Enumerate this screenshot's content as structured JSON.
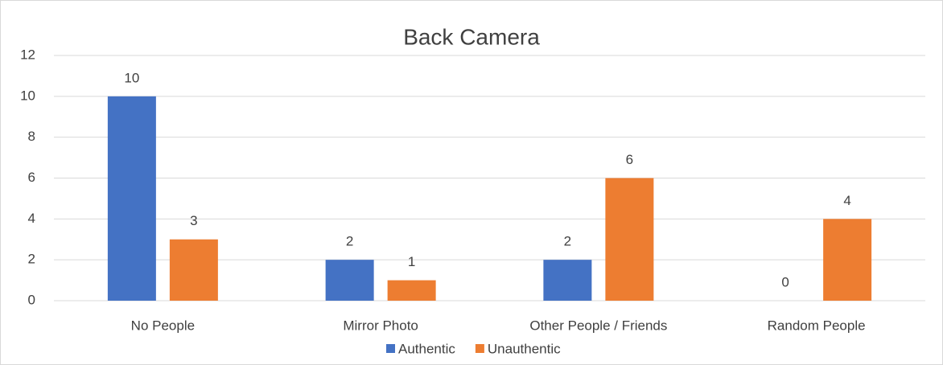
{
  "chart_data": {
    "type": "bar",
    "title": "Back Camera",
    "categories": [
      "No People",
      "Mirror Photo",
      "Other People / Friends",
      "Random People"
    ],
    "series": [
      {
        "name": "Authentic",
        "color": "#4472c4",
        "values": [
          10,
          2,
          2,
          0
        ]
      },
      {
        "name": "Unauthentic",
        "color": "#ed7d31",
        "values": [
          3,
          1,
          6,
          4
        ]
      }
    ],
    "ylim": [
      0,
      12
    ],
    "yticks": [
      0,
      2,
      4,
      6,
      8,
      10,
      12
    ],
    "grid": true,
    "legend": "bottom"
  }
}
